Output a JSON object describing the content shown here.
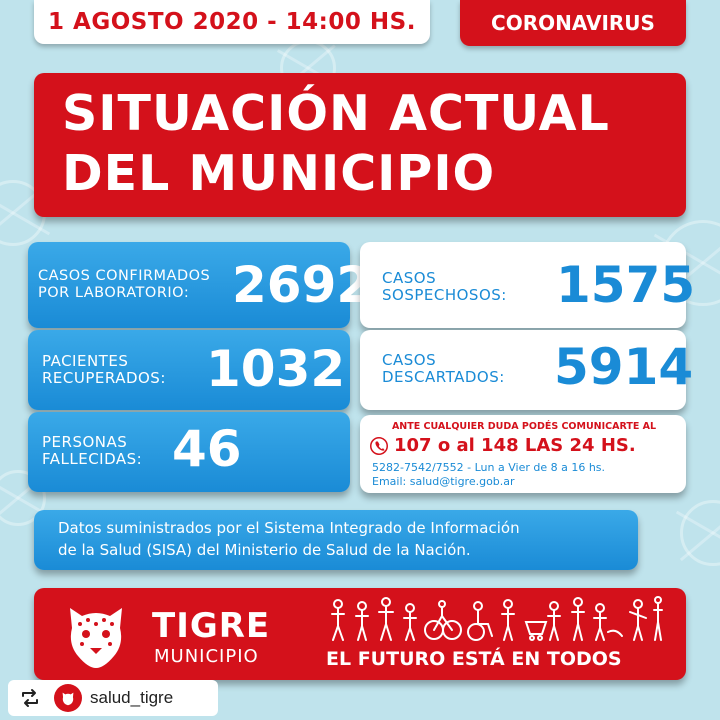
{
  "header": {
    "date_time": "1 AGOSTO 2020 - 14:00 HS.",
    "tag": "CORONAVIRUS"
  },
  "title": {
    "line1": "SITUACIÓN ACTUAL",
    "line2": "DEL MUNICIPIO"
  },
  "stats": {
    "confirmed": {
      "label": "CASOS CONFIRMADOS\nPOR LABORATORIO:",
      "value": "2692"
    },
    "recovered": {
      "label": "PACIENTES\nRECUPERADOS:",
      "value": "1032"
    },
    "deceased": {
      "label": "PERSONAS\nFALLECIDAS:",
      "value": "46"
    },
    "suspected": {
      "label": "CASOS\nSOSPECHOSOS:",
      "value": "1575"
    },
    "discarded": {
      "label": "CASOS\nDESCARTADOS:",
      "value": "5914"
    }
  },
  "contact": {
    "heading": "ANTE CUALQUIER DUDA PODÉS COMUNICARTE AL",
    "phones": "107 o al 148 LAS 24 HS.",
    "phone_line": "5282-7542/7552 - Lun a Vier de 8 a 16 hs.",
    "email_line": "Email: salud@tigre.gob.ar",
    "phone_icon": "phone-icon"
  },
  "source": {
    "line1": "Datos suministrados por el Sistema Integrado de Información",
    "line2": "de la Salud (SISA) del Ministerio de Salud de la Nación."
  },
  "footer": {
    "brand": "TIGRE",
    "brand_sub": "MUNICIPIO",
    "slogan_prefix": "EL FUTURO ESTÁ EN ",
    "slogan_bold": "TODOS",
    "logo_icon": "tiger-head-icon"
  },
  "repost": {
    "username": "salud_tigre",
    "icon": "repost-icon"
  },
  "colors": {
    "red": "#d4111b",
    "blue": "#1a8bd6",
    "background": "#bfe3ec"
  }
}
